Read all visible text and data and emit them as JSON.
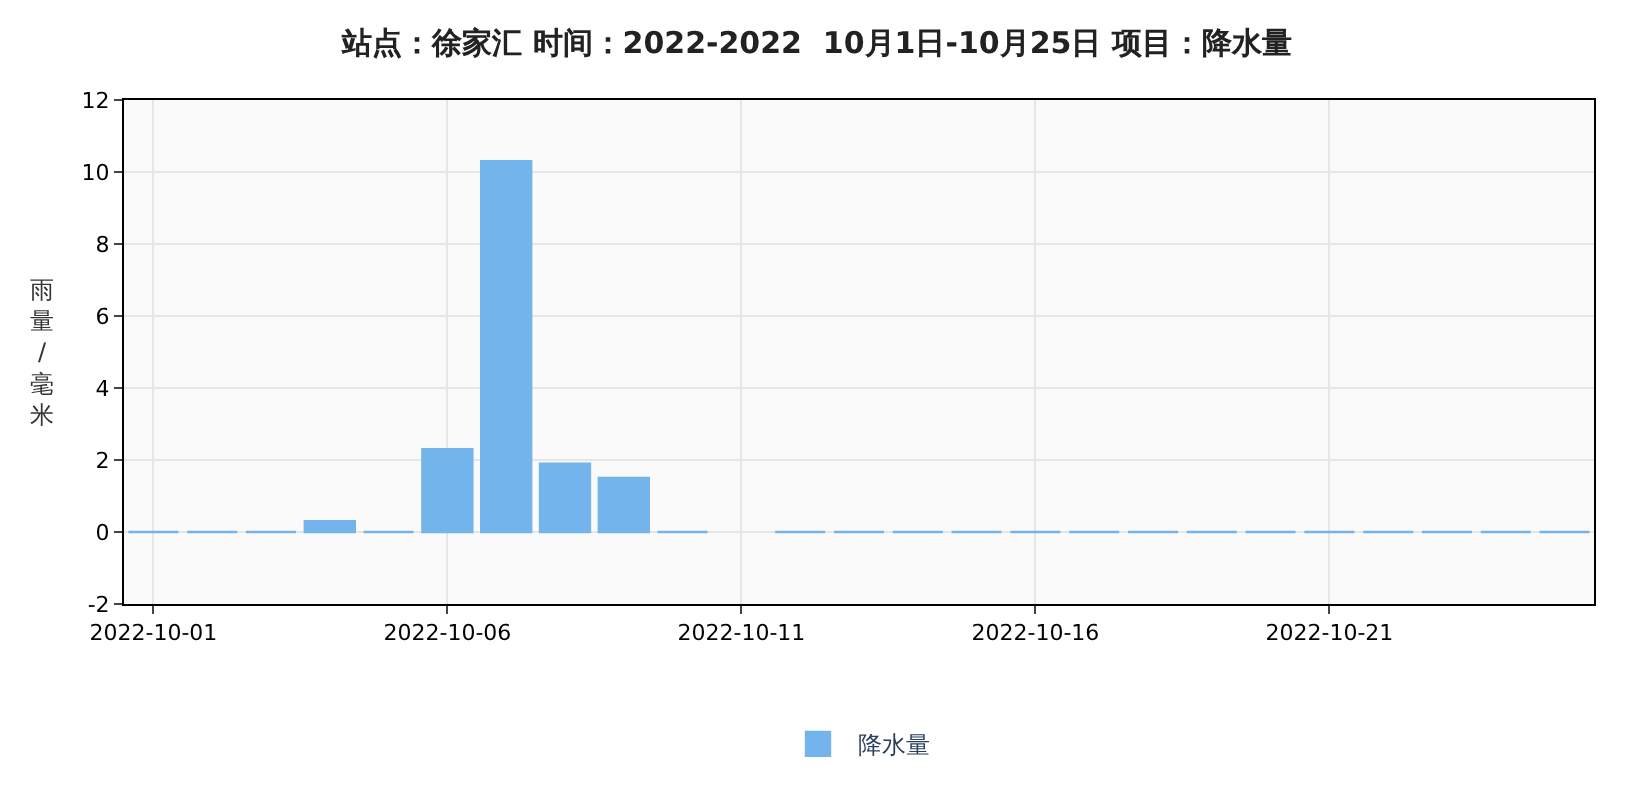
{
  "chart_data": {
    "type": "bar",
    "title": "站点：徐家汇 时间：2022-2022  10月1日-10月25日 项目：降水量",
    "ylabel": "雨量/毫米",
    "x": [
      "2022-10-01",
      "2022-10-02",
      "2022-10-03",
      "2022-10-04",
      "2022-10-05",
      "2022-10-06",
      "2022-10-07",
      "2022-10-08",
      "2022-10-09",
      "2022-10-10",
      "2022-10-11",
      "2022-10-12",
      "2022-10-13",
      "2022-10-14",
      "2022-10-15",
      "2022-10-16",
      "2022-10-17",
      "2022-10-18",
      "2022-10-19",
      "2022-10-20",
      "2022-10-21",
      "2022-10-22",
      "2022-10-23",
      "2022-10-24",
      "2022-10-25"
    ],
    "series": [
      {
        "name": "降水量",
        "color": "#74b4ec",
        "values": [
          0,
          0,
          0,
          0.3,
          0,
          2.3,
          10.3,
          1.9,
          1.5,
          0,
          null,
          0,
          0,
          0,
          0,
          0,
          0,
          0,
          0,
          0,
          0,
          0,
          0,
          0,
          0
        ]
      }
    ],
    "xlim": [
      "2022-09-30T12:00",
      "2022-10-25T12:00"
    ],
    "xticks": [
      "2022-10-01",
      "2022-10-06",
      "2022-10-11",
      "2022-10-16",
      "2022-10-21"
    ],
    "ylim": [
      -2,
      12
    ],
    "yticks": [
      -2,
      0,
      2,
      4,
      6,
      8,
      10,
      12
    ],
    "grid": true,
    "legend": "bottom"
  }
}
